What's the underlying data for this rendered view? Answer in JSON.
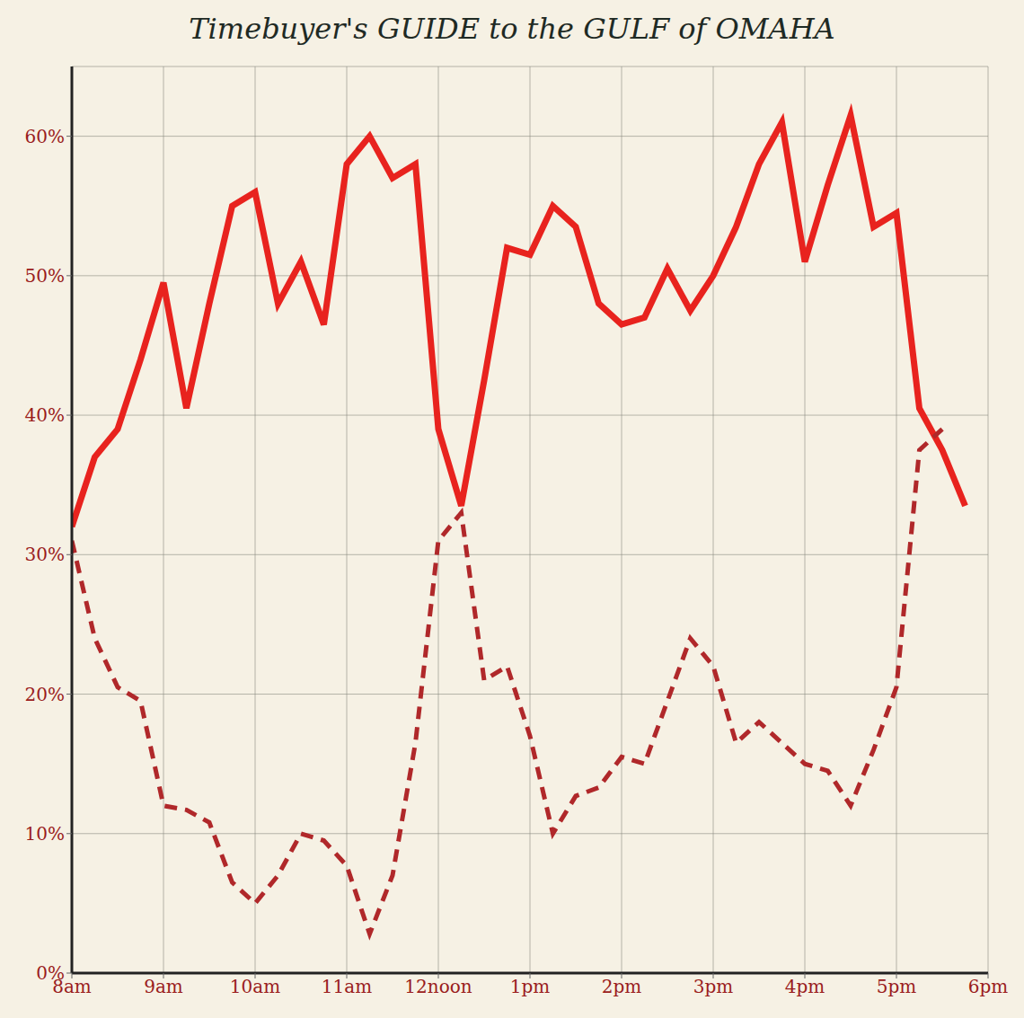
{
  "chart_data": {
    "type": "line",
    "title": "Timebuyer's GUIDE to the GULF of OMAHA",
    "x": [
      8,
      8.25,
      8.5,
      8.75,
      9,
      9.25,
      9.5,
      9.75,
      10,
      10.25,
      10.5,
      10.75,
      11,
      11.25,
      11.5,
      11.75,
      12,
      12.25,
      12.5,
      12.75,
      13,
      13.25,
      13.5,
      13.75,
      14,
      14.25,
      14.5,
      14.75,
      15,
      15.25,
      15.5,
      15.75,
      16,
      16.25,
      16.5,
      16.75,
      17,
      17.25,
      17.5,
      17.75
    ],
    "series": [
      {
        "color": "#e8231e",
        "line_style": "solid",
        "values": [
          32,
          37,
          39,
          44,
          49.5,
          40.5,
          48,
          55,
          56,
          48,
          51,
          46.5,
          58,
          60,
          57,
          58,
          39,
          33.5,
          42.5,
          52,
          51.5,
          55,
          53.5,
          48,
          46.5,
          47,
          50.5,
          47.5,
          50,
          53.5,
          58,
          61,
          51,
          56.5,
          61.5,
          53.5,
          54.5,
          40.5,
          37.5,
          33.5
        ]
      },
      {
        "color": "#b0282a",
        "line_style": "dashed",
        "values": [
          31,
          24,
          20.5,
          19.5,
          12,
          11.7,
          10.8,
          6.5,
          5,
          7,
          10,
          9.5,
          7.7,
          2.8,
          7,
          16.5,
          31,
          33,
          21,
          22,
          17,
          10,
          12.7,
          13.3,
          15.5,
          15,
          19.5,
          24,
          22,
          16.5,
          18,
          16.5,
          15,
          14.5,
          12,
          16,
          20.5,
          37.5,
          39,
          null
        ]
      }
    ],
    "xlim": [
      8,
      18
    ],
    "xticks": [
      {
        "value": 8,
        "label": "8am"
      },
      {
        "value": 9,
        "label": "9am"
      },
      {
        "value": 10,
        "label": "10am"
      },
      {
        "value": 11,
        "label": "11am"
      },
      {
        "value": 12,
        "label": "12noon"
      },
      {
        "value": 13,
        "label": "1pm"
      },
      {
        "value": 14,
        "label": "2pm"
      },
      {
        "value": 15,
        "label": "3pm"
      },
      {
        "value": 16,
        "label": "4pm"
      },
      {
        "value": 17,
        "label": "5pm"
      },
      {
        "value": 18,
        "label": "6pm"
      }
    ],
    "ylim": [
      0,
      65
    ],
    "yticks": [
      {
        "value": 0,
        "label": "0%"
      },
      {
        "value": 10,
        "label": "10%"
      },
      {
        "value": 20,
        "label": "20%"
      },
      {
        "value": 30,
        "label": "30%"
      },
      {
        "value": 40,
        "label": "40%"
      },
      {
        "value": 50,
        "label": "50%"
      },
      {
        "value": 60,
        "label": "60%"
      }
    ],
    "grid": true
  }
}
